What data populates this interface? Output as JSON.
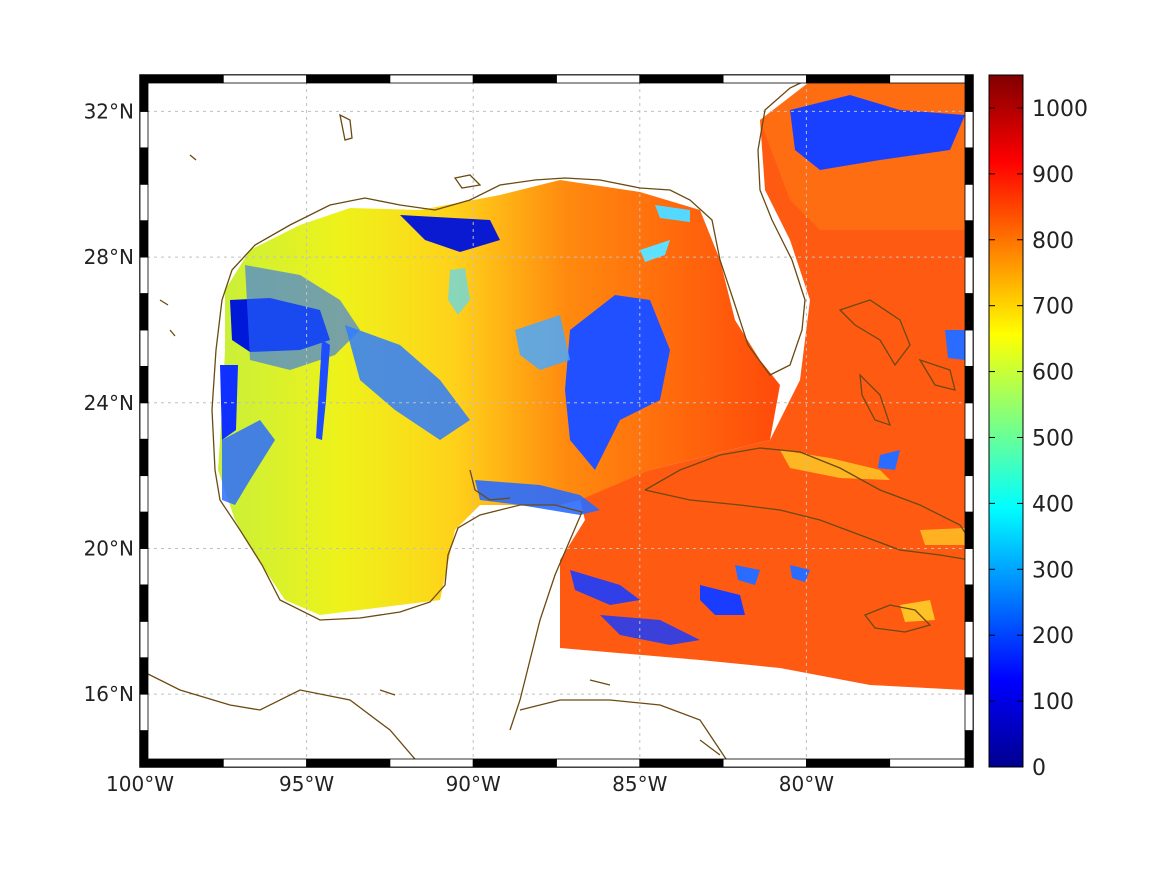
{
  "map": {
    "lon_range": [
      -100,
      -75
    ],
    "lat_range": [
      14,
      33
    ],
    "lon_ticks": [
      {
        "value": -100,
        "label": "100°W"
      },
      {
        "value": -95,
        "label": "95°W"
      },
      {
        "value": -90,
        "label": "90°W"
      },
      {
        "value": -85,
        "label": "85°W"
      },
      {
        "value": -80,
        "label": "80°W"
      }
    ],
    "lat_ticks": [
      {
        "value": 16,
        "label": "16°N"
      },
      {
        "value": 20,
        "label": "20°N"
      },
      {
        "value": 24,
        "label": "24°N"
      },
      {
        "value": 28,
        "label": "28°N"
      },
      {
        "value": 32,
        "label": "32°N"
      }
    ],
    "grid": true,
    "coastline_color": "#6b4a12",
    "frame_colors": [
      "#000000",
      "#ffffff"
    ]
  },
  "colorbar": {
    "colormap": "jet",
    "range": [
      0,
      1050
    ],
    "ticks": [
      {
        "value": 0,
        "label": "0"
      },
      {
        "value": 100,
        "label": "100"
      },
      {
        "value": 200,
        "label": "200"
      },
      {
        "value": 300,
        "label": "300"
      },
      {
        "value": 400,
        "label": "400"
      },
      {
        "value": 500,
        "label": "500"
      },
      {
        "value": 600,
        "label": "600"
      },
      {
        "value": 700,
        "label": "700"
      },
      {
        "value": 800,
        "label": "800"
      },
      {
        "value": 900,
        "label": "900"
      },
      {
        "value": 1000,
        "label": "1000"
      }
    ]
  }
}
